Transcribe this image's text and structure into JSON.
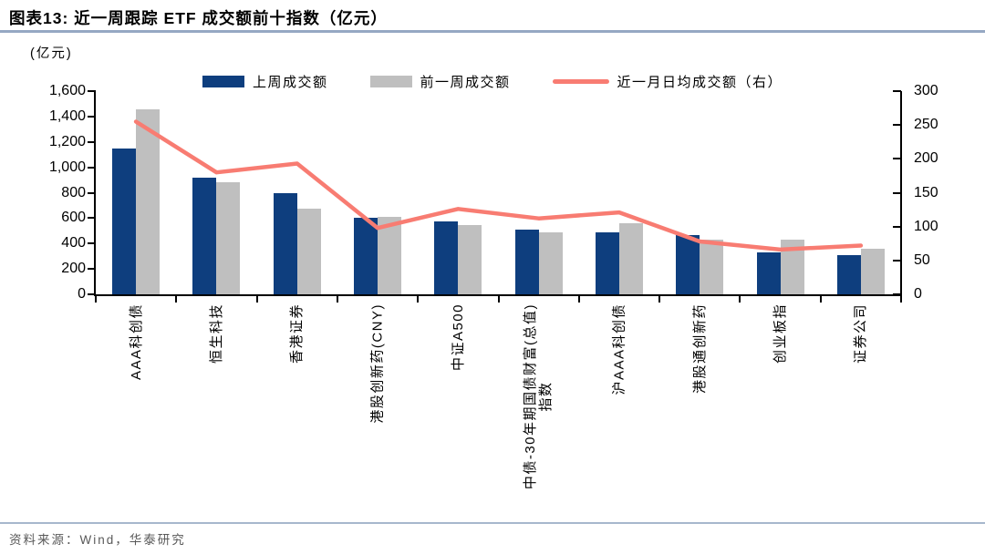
{
  "header": {
    "title": "图表13:  近一周跟踪 ETF 成交额前十指数（亿元）"
  },
  "unit_label": "(亿元)",
  "footer": {
    "source": "资料来源：Wind，华泰研究"
  },
  "colors": {
    "bar_last_week": "#0e3e7e",
    "bar_prev_week": "#bfbfbf",
    "trend_line": "#f87c72",
    "title_rule": "#96a8c3",
    "source_text": "#595959"
  },
  "chart_data": {
    "type": "bar",
    "subtype": "grouped-bars-with-line",
    "title": "近一周跟踪ETF成交额前十指数（亿元）",
    "categories": [
      "AAA科创债",
      "恒生科技",
      "香港证券",
      "港股创新药(CNY)",
      "中证A500",
      "中债-30年期国债财富(总值)\n指数",
      "沪AAA科创债",
      "港股通创新药",
      "创业板指",
      "证券公司"
    ],
    "series": [
      {
        "name": "上周成交额",
        "type": "bar",
        "axis": "left",
        "color": "#0e3e7e",
        "values": [
          1145,
          915,
          800,
          605,
          575,
          512,
          485,
          465,
          328,
          310
        ]
      },
      {
        "name": "前一周成交额",
        "type": "bar",
        "axis": "left",
        "color": "#bfbfbf",
        "values": [
          1455,
          885,
          672,
          610,
          545,
          485,
          560,
          433,
          428,
          357
        ]
      },
      {
        "name": "近一月日均成交额（右）",
        "type": "line",
        "axis": "right",
        "color": "#f87c72",
        "values": [
          255,
          180,
          193,
          98,
          126,
          112,
          121,
          78,
          66,
          72
        ]
      }
    ],
    "left_axis": {
      "min": 0,
      "max": 1600,
      "step": 200,
      "tick_labels": [
        "1,600",
        "1,400",
        "1,200",
        "1,000",
        "800",
        "600",
        "400",
        "200",
        "0"
      ]
    },
    "right_axis": {
      "min": 0,
      "max": 300,
      "step": 50,
      "tick_labels": [
        "300",
        "250",
        "200",
        "150",
        "100",
        "50",
        "0"
      ]
    },
    "legend_position": "top",
    "grid": false
  }
}
